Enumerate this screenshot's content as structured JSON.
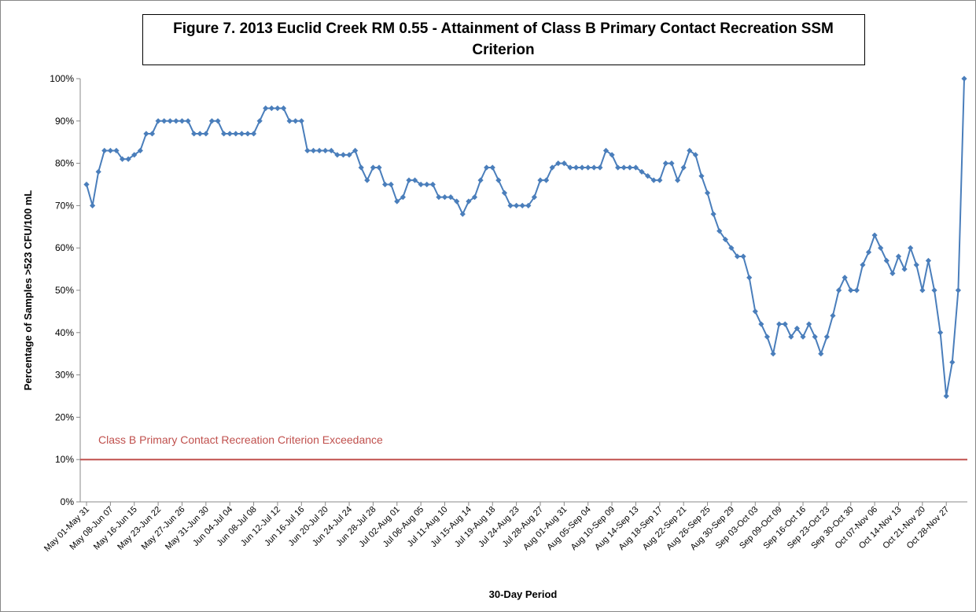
{
  "chart_data": {
    "type": "line",
    "title": "Figure 7. 2013 Euclid Creek RM 0.55 - Attainment of Class B Primary Contact Recreation SSM Criterion",
    "x_label": "30-Day Period",
    "y_label": "Percentage of Samples >523 CFU/100 mL",
    "categories": [
      "May 01-May 31",
      null,
      null,
      null,
      "May 08-Jun 07",
      null,
      null,
      null,
      "May 16-Jun 15",
      null,
      null,
      null,
      "May 23-Jun 22",
      null,
      null,
      null,
      "May 27-Jun 26",
      null,
      null,
      null,
      "May 31-Jun 30",
      null,
      null,
      null,
      "Jun 04-Jul 04",
      null,
      null,
      null,
      "Jun 08-Jul 08",
      null,
      null,
      null,
      "Jun 12-Jul 12",
      null,
      null,
      null,
      "Jun 16-Jul 16",
      null,
      null,
      null,
      "Jun 20-Jul 20",
      null,
      null,
      null,
      "Jun 24-Jul 24",
      null,
      null,
      null,
      "Jun 28-Jul 28",
      null,
      null,
      null,
      "Jul 02-Aug 01",
      null,
      null,
      null,
      "Jul 06-Aug 05",
      null,
      null,
      null,
      "Jul 11-Aug 10",
      null,
      null,
      null,
      "Jul 15-Aug 14",
      null,
      null,
      null,
      "Jul 19-Aug 18",
      null,
      null,
      null,
      "Jul 24-Aug 23",
      null,
      null,
      null,
      "Jul 28-Aug 27",
      null,
      null,
      null,
      "Aug 01-Aug 31",
      null,
      null,
      null,
      "Aug 05-Sep 04",
      null,
      null,
      null,
      "Aug 10-Sep 09",
      null,
      null,
      null,
      "Aug 14-Sep 13",
      null,
      null,
      null,
      "Aug 18-Sep 17",
      null,
      null,
      null,
      "Aug 22-Sep 21",
      null,
      null,
      null,
      "Aug 26-Sep 25",
      null,
      null,
      null,
      "Aug 30-Sep 29",
      null,
      null,
      null,
      "Sep 03-Oct 03",
      null,
      null,
      null,
      "Sep 09-Oct 09",
      null,
      null,
      null,
      "Sep 16-Oct 16",
      null,
      null,
      null,
      "Sep 23-Oct 23",
      null,
      null,
      null,
      "Sep 30-Oct 30",
      null,
      null,
      null,
      "Oct 07-Nov 06",
      null,
      null,
      null,
      "Oct 14-Nov 13",
      null,
      null,
      null,
      "Oct 21-Nov 20",
      null,
      null,
      null,
      "Oct 28-Nov 27",
      null,
      null,
      null
    ],
    "series": [
      {
        "color": "#4a7ebb",
        "values": [
          75,
          70,
          78,
          83,
          83,
          83,
          81,
          81,
          82,
          83,
          87,
          87,
          90,
          90,
          90,
          90,
          90,
          90,
          87,
          87,
          87,
          90,
          90,
          87,
          87,
          87,
          87,
          87,
          87,
          90,
          93,
          93,
          93,
          93,
          90,
          90,
          90,
          83,
          83,
          83,
          83,
          83,
          82,
          82,
          82,
          83,
          79,
          76,
          79,
          79,
          75,
          75,
          71,
          72,
          76,
          76,
          75,
          75,
          75,
          72,
          72,
          72,
          71,
          68,
          71,
          72,
          76,
          79,
          79,
          76,
          73,
          70,
          70,
          70,
          70,
          72,
          76,
          76,
          79,
          80,
          80,
          79,
          79,
          79,
          79,
          79,
          79,
          83,
          82,
          79,
          79,
          79,
          79,
          78,
          77,
          76,
          76,
          80,
          80,
          76,
          79,
          83,
          82,
          77,
          73,
          68,
          64,
          62,
          60,
          58,
          58,
          53,
          45,
          42,
          39,
          35,
          42,
          42,
          39,
          41,
          39,
          42,
          39,
          35,
          39,
          44,
          50,
          53,
          50,
          50,
          56,
          59,
          63,
          60,
          57,
          54,
          58,
          55,
          60,
          56,
          50,
          57,
          50,
          40,
          25,
          33,
          50,
          100
        ]
      }
    ],
    "reference_line": {
      "value": 10,
      "label": "Class B Primary Contact Recreation Criterion Exceedance",
      "color": "#c0504d"
    },
    "ylim": [
      0,
      100
    ],
    "yticks": [
      {
        "value": 0,
        "label": "0%"
      },
      {
        "value": 10,
        "label": "10%"
      },
      {
        "value": 20,
        "label": "20%"
      },
      {
        "value": 30,
        "label": "30%"
      },
      {
        "value": 40,
        "label": "40%"
      },
      {
        "value": 50,
        "label": "50%"
      },
      {
        "value": 60,
        "label": "60%"
      },
      {
        "value": 70,
        "label": "70%"
      },
      {
        "value": 80,
        "label": "80%"
      },
      {
        "value": 90,
        "label": "90%"
      },
      {
        "value": 100,
        "label": "100%"
      }
    ],
    "grid": false
  }
}
